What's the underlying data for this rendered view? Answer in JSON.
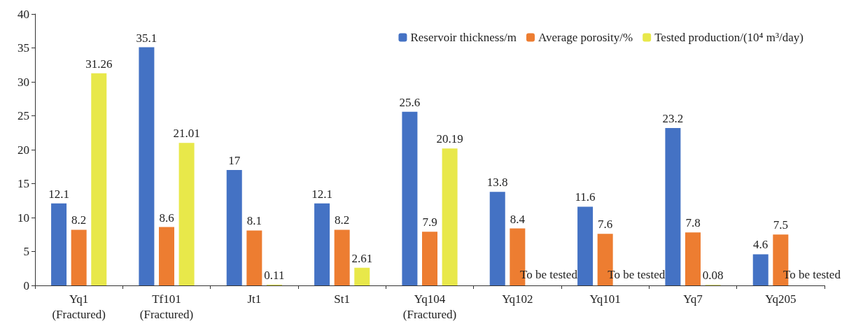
{
  "chart_data": {
    "type": "bar",
    "categories": [
      "Yq1\n(Fractured)",
      "Tf101\n(Fractured)",
      "Jt1",
      "St1",
      "Yq104\n(Fractured)",
      "Yq102",
      "Yq101",
      "Yq7",
      "Yq205"
    ],
    "series": [
      {
        "name": "Reservoir thickness/m",
        "color": "#4472c4",
        "values": [
          12.1,
          35.1,
          17,
          12.1,
          25.6,
          13.8,
          11.6,
          23.2,
          4.6
        ]
      },
      {
        "name": "Average porosity/%",
        "color": "#ed7d31",
        "values": [
          8.2,
          8.6,
          8.1,
          8.2,
          7.9,
          8.4,
          7.6,
          7.8,
          7.5
        ]
      },
      {
        "name": "Tested production/(10⁴ m³/day)",
        "color": "#e8e84a",
        "values": [
          31.26,
          21.01,
          0.11,
          2.61,
          20.19,
          null,
          null,
          0.08,
          null
        ],
        "value_labels": [
          "31.26",
          "21.01",
          "0.11",
          "2.61",
          "20.19",
          "To be tested",
          "To be tested",
          "0.08",
          "To be tested"
        ]
      }
    ],
    "ylim": [
      0,
      40
    ],
    "yticks": [
      0,
      5,
      10,
      15,
      20,
      25,
      30,
      35,
      40
    ],
    "grid": false,
    "legend": "top right",
    "data_labels": true
  }
}
